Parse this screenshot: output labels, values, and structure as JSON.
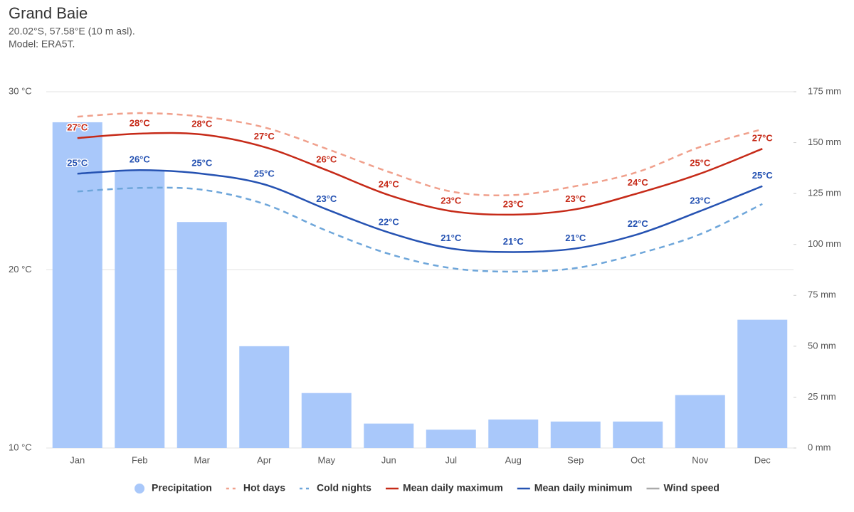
{
  "chart_data": {
    "type": "bar",
    "title": "Grand Baie",
    "subtitle": [
      "20.02°S, 57.58°E (10 m asl).",
      "Model: ERA5T."
    ],
    "categories": [
      "Jan",
      "Feb",
      "Mar",
      "Apr",
      "May",
      "Jun",
      "Jul",
      "Aug",
      "Sep",
      "Oct",
      "Nov",
      "Dec"
    ],
    "ylim": [
      10,
      30
    ],
    "yticks": [
      {
        "value": 10,
        "label": "10 °C"
      },
      {
        "value": 20,
        "label": "20 °C"
      },
      {
        "value": 30,
        "label": "30 °C"
      }
    ],
    "y2lim": [
      0,
      175
    ],
    "y2ticks": [
      {
        "value": 0,
        "label": "0 mm"
      },
      {
        "value": 25,
        "label": "25 mm"
      },
      {
        "value": 50,
        "label": "50 mm"
      },
      {
        "value": 75,
        "label": "75 mm"
      },
      {
        "value": 100,
        "label": "100 mm"
      },
      {
        "value": 125,
        "label": "125 mm"
      },
      {
        "value": 150,
        "label": "150 mm"
      },
      {
        "value": 175,
        "label": "175 mm"
      }
    ],
    "grid": true,
    "legend": "bottom",
    "series": [
      {
        "name": "Precipitation",
        "type": "bar",
        "axis": "y2",
        "color": "#a9c8fa",
        "values": [
          160,
          136,
          111,
          50,
          27,
          12,
          9,
          14,
          13,
          13,
          26,
          63
        ]
      },
      {
        "name": "Hot days",
        "type": "line",
        "dash": true,
        "color": "#f0a08c",
        "values": [
          28.6,
          28.8,
          28.6,
          28.0,
          26.8,
          25.5,
          24.4,
          24.2,
          24.7,
          25.5,
          26.9,
          27.9
        ]
      },
      {
        "name": "Cold nights",
        "type": "line",
        "dash": true,
        "color": "#6ea6da",
        "values": [
          24.4,
          24.6,
          24.5,
          23.7,
          22.2,
          20.9,
          20.1,
          19.9,
          20.1,
          20.9,
          22.0,
          23.7
        ]
      },
      {
        "name": "Mean daily maximum",
        "type": "line",
        "color": "#c62a18",
        "values": [
          27.4,
          27.65,
          27.6,
          26.9,
          25.6,
          24.2,
          23.3,
          23.1,
          23.4,
          24.3,
          25.4,
          26.8
        ],
        "value_labels": [
          "27°C",
          "28°C",
          "28°C",
          "27°C",
          "26°C",
          "24°C",
          "23°C",
          "23°C",
          "23°C",
          "24°C",
          "25°C",
          "27°C"
        ]
      },
      {
        "name": "Mean daily minimum",
        "type": "line",
        "color": "#2552b2",
        "values": [
          25.4,
          25.6,
          25.4,
          24.8,
          23.4,
          22.1,
          21.2,
          21.0,
          21.2,
          22.0,
          23.3,
          24.7
        ],
        "value_labels": [
          "25°C",
          "26°C",
          "25°C",
          "25°C",
          "23°C",
          "22°C",
          "21°C",
          "21°C",
          "21°C",
          "22°C",
          "23°C",
          "25°C"
        ]
      },
      {
        "name": "Wind speed",
        "type": "line",
        "visible": false,
        "color": "#aaaaaa"
      }
    ]
  }
}
